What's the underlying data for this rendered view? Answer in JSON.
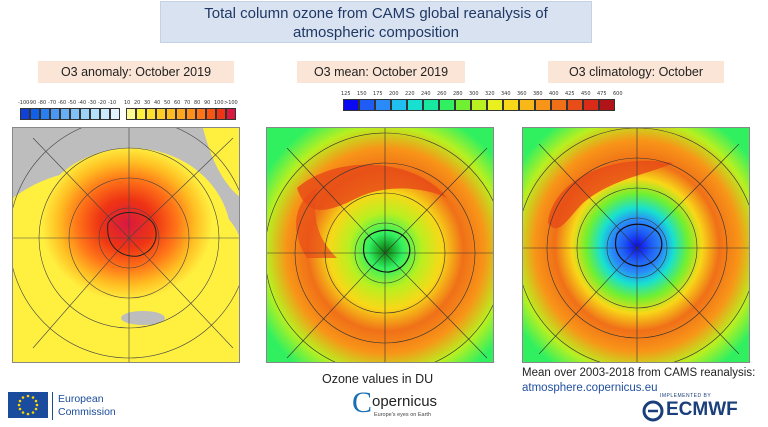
{
  "title": {
    "line1": "Total column ozone from CAMS global reanalysis of",
    "line2": "atmospheric composition"
  },
  "panels": [
    {
      "label": "O3 anomaly: October 2019"
    },
    {
      "label": "O3 mean: October 2019"
    },
    {
      "label": "O3 climatology: October"
    }
  ],
  "anomaly_scale": {
    "ticks": [
      "-100",
      "-90",
      "-80",
      "-70",
      "-60",
      "-50",
      "-40",
      "-30",
      "-20",
      "-10",
      "10",
      "20",
      "30",
      "40",
      "50",
      "60",
      "70",
      "80",
      "90",
      "100",
      ">100"
    ],
    "colors": [
      "#1040d8",
      "#1060e8",
      "#2a7ff0",
      "#4a98f4",
      "#66aef6",
      "#80c2f8",
      "#9ad2fa",
      "#b4e0fc",
      "#cceafd",
      "#e4f4fe",
      "#fffb90",
      "#fff040",
      "#ffe030",
      "#ffcf28",
      "#ffbd22",
      "#ffa81e",
      "#ff901c",
      "#ff7418",
      "#f85414",
      "#ee3414",
      "#d81840"
    ]
  },
  "mean_scale": {
    "ticks": [
      "125",
      "150",
      "175",
      "200",
      "220",
      "240",
      "260",
      "280",
      "300",
      "320",
      "340",
      "360",
      "380",
      "400",
      "425",
      "450",
      "475",
      "600"
    ],
    "colors": [
      "#0a0af0",
      "#1f5cf5",
      "#2a8af8",
      "#1fc0f0",
      "#18e0d0",
      "#16e8a0",
      "#30f060",
      "#70f030",
      "#b8f020",
      "#e8f020",
      "#f8d818",
      "#f8b818",
      "#f89418",
      "#f07018",
      "#e84c18",
      "#d82c18",
      "#b01418"
    ]
  },
  "caption_center": "Ozone values in DU",
  "caption_right": {
    "line1": "Mean over 2003-2018 from CAMS reanalysis:",
    "link": "atmosphere.copernicus.eu"
  },
  "logos": {
    "ec": {
      "line1": "European",
      "line2": "Commission"
    },
    "copernicus": {
      "name": "opernicus",
      "letter": "C",
      "tagline": "Europe's eyes on Earth"
    },
    "ecmwf": {
      "small": "IMPLEMENTED BY",
      "name": "ECMWF"
    }
  },
  "colors": {
    "title_bg": "#d9e2f1",
    "label_bg": "#fbe5d6",
    "link": "#1f4e9e"
  }
}
